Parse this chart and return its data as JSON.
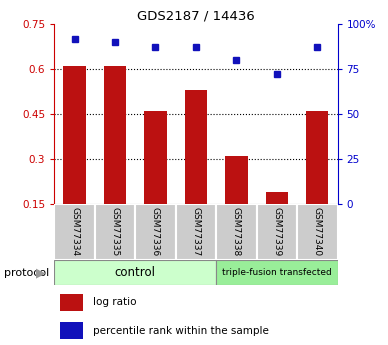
{
  "title": "GDS2187 / 14436",
  "samples": [
    "GSM77334",
    "GSM77335",
    "GSM77336",
    "GSM77337",
    "GSM77338",
    "GSM77339",
    "GSM77340"
  ],
  "log_ratio": [
    0.61,
    0.61,
    0.46,
    0.53,
    0.31,
    0.19,
    0.46
  ],
  "percentile_rank": [
    92,
    90,
    87,
    87,
    80,
    72,
    87
  ],
  "bar_color": "#bb1111",
  "dot_color": "#1111bb",
  "ylim_left": [
    0.15,
    0.75
  ],
  "ylim_right": [
    0,
    100
  ],
  "yticks_left": [
    0.15,
    0.3,
    0.45,
    0.6,
    0.75
  ],
  "yticks_right": [
    0,
    25,
    50,
    75,
    100
  ],
  "ytick_labels_left": [
    "0.15",
    "0.3",
    "0.45",
    "0.6",
    "0.75"
  ],
  "ytick_labels_right": [
    "0",
    "25",
    "50",
    "75",
    "100%"
  ],
  "gridlines_at": [
    0.3,
    0.45,
    0.6
  ],
  "control_samples": 4,
  "triple_fusion_samples": 3,
  "protocol_label": "protocol",
  "group1_label": "control",
  "group2_label": "triple-fusion transfected",
  "group1_color": "#ccffcc",
  "group2_color": "#99ee99",
  "sample_box_color": "#cccccc",
  "xlabel_color": "#cc0000",
  "ylabel_right_color": "#0000cc",
  "legend_log_ratio": "log ratio",
  "legend_percentile": "percentile rank within the sample",
  "bar_width": 0.55
}
